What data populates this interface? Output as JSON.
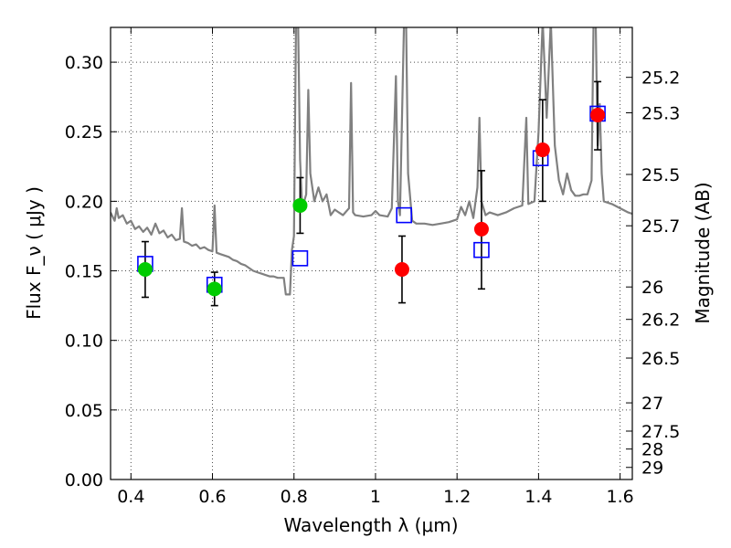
{
  "chart_data": {
    "type": "scatter",
    "title": "",
    "xlabel": "Wavelength  λ (μm)",
    "ylabel": "Flux  F_ν  ( μJy )",
    "ylabel_right": "Magnitude (AB)",
    "xlim": [
      0.35,
      1.63
    ],
    "ylim": [
      0,
      0.325
    ],
    "grid": true,
    "x_ticks": [
      0.4,
      0.6,
      0.8,
      1.0,
      1.2,
      1.4,
      1.6
    ],
    "x_tick_labels": [
      "0.4",
      "0.6",
      "0.8",
      "1",
      "1.2",
      "1.4",
      "1.6"
    ],
    "y_ticks": [
      0.0,
      0.05,
      0.1,
      0.15,
      0.2,
      0.25,
      0.3
    ],
    "y_tick_labels": [
      "0.00",
      "0.05",
      "0.10",
      "0.15",
      "0.20",
      "0.25",
      "0.30"
    ],
    "mag_ticks": [
      {
        "label": "25.2",
        "flux": 0.2891
      },
      {
        "label": "25.3",
        "flux": 0.2636
      },
      {
        "label": "25.5",
        "flux": 0.2193
      },
      {
        "label": "25.7",
        "flux": 0.1824
      },
      {
        "label": "26",
        "flux": 0.1384
      },
      {
        "label": "26.2",
        "flux": 0.1151
      },
      {
        "label": "26.5",
        "flux": 0.0873
      },
      {
        "label": "27",
        "flux": 0.0551
      },
      {
        "label": "27.5",
        "flux": 0.0348
      },
      {
        "label": "28",
        "flux": 0.0219
      },
      {
        "label": "29",
        "flux": 0.0087
      }
    ],
    "series": [
      {
        "kind": "model_spectrum",
        "color": "#808080",
        "points": [
          [
            0.35,
            0.192
          ],
          [
            0.36,
            0.186
          ],
          [
            0.365,
            0.195
          ],
          [
            0.37,
            0.188
          ],
          [
            0.38,
            0.19
          ],
          [
            0.39,
            0.184
          ],
          [
            0.4,
            0.186
          ],
          [
            0.41,
            0.18
          ],
          [
            0.42,
            0.182
          ],
          [
            0.43,
            0.178
          ],
          [
            0.44,
            0.181
          ],
          [
            0.45,
            0.176
          ],
          [
            0.46,
            0.184
          ],
          [
            0.47,
            0.177
          ],
          [
            0.48,
            0.179
          ],
          [
            0.49,
            0.174
          ],
          [
            0.5,
            0.176
          ],
          [
            0.51,
            0.172
          ],
          [
            0.52,
            0.173
          ],
          [
            0.525,
            0.195
          ],
          [
            0.53,
            0.171
          ],
          [
            0.54,
            0.17
          ],
          [
            0.55,
            0.168
          ],
          [
            0.56,
            0.169
          ],
          [
            0.57,
            0.166
          ],
          [
            0.58,
            0.167
          ],
          [
            0.59,
            0.165
          ],
          [
            0.6,
            0.164
          ],
          [
            0.605,
            0.197
          ],
          [
            0.61,
            0.163
          ],
          [
            0.62,
            0.162
          ],
          [
            0.63,
            0.161
          ],
          [
            0.64,
            0.16
          ],
          [
            0.65,
            0.158
          ],
          [
            0.66,
            0.157
          ],
          [
            0.67,
            0.155
          ],
          [
            0.68,
            0.154
          ],
          [
            0.69,
            0.152
          ],
          [
            0.7,
            0.15
          ],
          [
            0.71,
            0.149
          ],
          [
            0.72,
            0.148
          ],
          [
            0.73,
            0.147
          ],
          [
            0.74,
            0.146
          ],
          [
            0.75,
            0.146
          ],
          [
            0.76,
            0.145
          ],
          [
            0.775,
            0.145
          ],
          [
            0.78,
            0.133
          ],
          [
            0.79,
            0.133
          ],
          [
            0.795,
            0.165
          ],
          [
            0.8,
            0.175
          ],
          [
            0.805,
            0.33
          ],
          [
            0.81,
            0.33
          ],
          [
            0.815,
            0.23
          ],
          [
            0.82,
            0.195
          ],
          [
            0.83,
            0.205
          ],
          [
            0.835,
            0.28
          ],
          [
            0.84,
            0.22
          ],
          [
            0.85,
            0.2
          ],
          [
            0.86,
            0.21
          ],
          [
            0.87,
            0.2
          ],
          [
            0.88,
            0.205
          ],
          [
            0.89,
            0.19
          ],
          [
            0.9,
            0.194
          ],
          [
            0.91,
            0.192
          ],
          [
            0.92,
            0.19
          ],
          [
            0.935,
            0.195
          ],
          [
            0.94,
            0.285
          ],
          [
            0.945,
            0.192
          ],
          [
            0.95,
            0.19
          ],
          [
            0.97,
            0.189
          ],
          [
            0.99,
            0.19
          ],
          [
            1.0,
            0.193
          ],
          [
            1.01,
            0.19
          ],
          [
            1.03,
            0.189
          ],
          [
            1.04,
            0.195
          ],
          [
            1.05,
            0.29
          ],
          [
            1.055,
            0.2
          ],
          [
            1.06,
            0.19
          ],
          [
            1.07,
            0.33
          ],
          [
            1.075,
            0.33
          ],
          [
            1.08,
            0.22
          ],
          [
            1.09,
            0.186
          ],
          [
            1.1,
            0.184
          ],
          [
            1.12,
            0.184
          ],
          [
            1.14,
            0.183
          ],
          [
            1.16,
            0.184
          ],
          [
            1.18,
            0.185
          ],
          [
            1.2,
            0.187
          ],
          [
            1.21,
            0.196
          ],
          [
            1.22,
            0.19
          ],
          [
            1.23,
            0.2
          ],
          [
            1.24,
            0.188
          ],
          [
            1.25,
            0.21
          ],
          [
            1.255,
            0.26
          ],
          [
            1.26,
            0.2
          ],
          [
            1.27,
            0.19
          ],
          [
            1.28,
            0.192
          ],
          [
            1.3,
            0.19
          ],
          [
            1.32,
            0.192
          ],
          [
            1.34,
            0.195
          ],
          [
            1.36,
            0.197
          ],
          [
            1.37,
            0.26
          ],
          [
            1.375,
            0.198
          ],
          [
            1.39,
            0.2
          ],
          [
            1.4,
            0.25
          ],
          [
            1.41,
            0.33
          ],
          [
            1.42,
            0.26
          ],
          [
            1.43,
            0.33
          ],
          [
            1.44,
            0.24
          ],
          [
            1.45,
            0.215
          ],
          [
            1.46,
            0.205
          ],
          [
            1.47,
            0.22
          ],
          [
            1.48,
            0.208
          ],
          [
            1.49,
            0.204
          ],
          [
            1.5,
            0.204
          ],
          [
            1.51,
            0.205
          ],
          [
            1.52,
            0.205
          ],
          [
            1.53,
            0.215
          ],
          [
            1.535,
            0.33
          ],
          [
            1.54,
            0.33
          ],
          [
            1.545,
            0.24
          ],
          [
            1.55,
            0.27
          ],
          [
            1.555,
            0.22
          ],
          [
            1.56,
            0.2
          ],
          [
            1.58,
            0.198
          ],
          [
            1.6,
            0.195
          ],
          [
            1.62,
            0.192
          ],
          [
            1.63,
            0.191
          ]
        ]
      },
      {
        "kind": "model_photometry",
        "marker": "open-square",
        "color": "#0000ff",
        "points": [
          [
            0.435,
            0.155
          ],
          [
            0.605,
            0.14
          ],
          [
            0.815,
            0.159
          ],
          [
            1.07,
            0.19
          ],
          [
            1.26,
            0.165
          ],
          [
            1.405,
            0.231
          ],
          [
            1.545,
            0.263
          ]
        ]
      },
      {
        "kind": "observed_hst_optical",
        "marker": "filled-circle",
        "color": "#00cc00",
        "points": [
          {
            "x": 0.435,
            "y": 0.151,
            "err_lo": 0.131,
            "err_hi": 0.171
          },
          {
            "x": 0.605,
            "y": 0.137,
            "err_lo": 0.125,
            "err_hi": 0.149
          },
          {
            "x": 0.815,
            "y": 0.197,
            "err_lo": 0.177,
            "err_hi": 0.217
          }
        ]
      },
      {
        "kind": "observed_hst_ir",
        "marker": "filled-circle",
        "color": "#ff0000",
        "points": [
          {
            "x": 1.065,
            "y": 0.151,
            "err_lo": 0.127,
            "err_hi": 0.175
          },
          {
            "x": 1.26,
            "y": 0.18,
            "err_lo": 0.137,
            "err_hi": 0.222
          },
          {
            "x": 1.41,
            "y": 0.237,
            "err_lo": 0.2,
            "err_hi": 0.273
          },
          {
            "x": 1.545,
            "y": 0.262,
            "err_lo": 0.237,
            "err_hi": 0.286
          }
        ]
      }
    ]
  }
}
